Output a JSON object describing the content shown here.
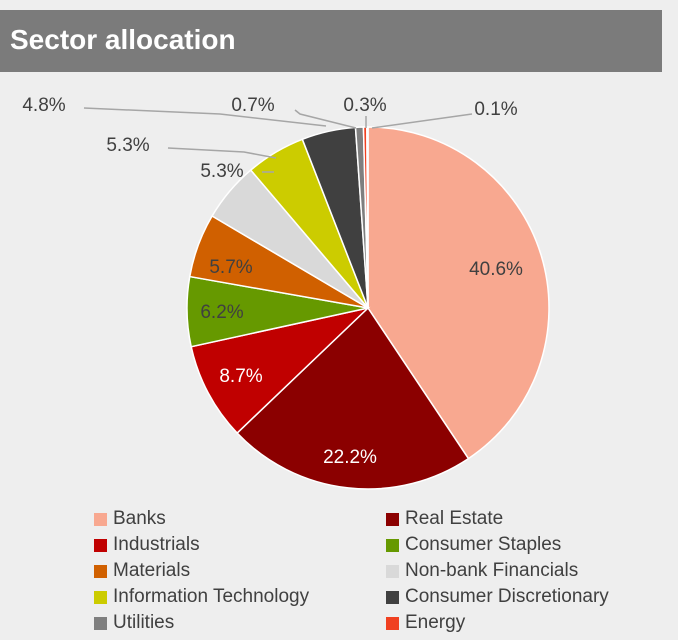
{
  "header": {
    "title": "Sector allocation"
  },
  "colors": {
    "background": "#eeeeee",
    "header_bg": "#7b7b7b",
    "leader_line": "#a6a6a6",
    "label_text": "#404040"
  },
  "chart_data": {
    "type": "pie",
    "title": "Sector allocation",
    "start": "12 o'clock, clockwise",
    "legend_position": "bottom",
    "slices": [
      {
        "name": "Banks",
        "value": 40.6,
        "label": "40.6%",
        "color": "#f8a890",
        "label_color": "#404040"
      },
      {
        "name": "Real Estate",
        "value": 22.2,
        "label": "22.2%",
        "color": "#8b0000",
        "label_color": "#ffffff"
      },
      {
        "name": "Industrials",
        "value": 8.7,
        "label": "8.7%",
        "color": "#c00000",
        "label_color": "#ffffff"
      },
      {
        "name": "Consumer Staples",
        "value": 6.2,
        "label": "6.2%",
        "color": "#669900",
        "label_color": "#404040"
      },
      {
        "name": "Materials",
        "value": 5.7,
        "label": "5.7%",
        "color": "#d06000",
        "label_color": "#404040"
      },
      {
        "name": "Non-bank Financials",
        "value": 5.3,
        "label": "5.3%",
        "color": "#d9d9d9",
        "label_color": "#404040"
      },
      {
        "name": "Information Technology",
        "value": 5.3,
        "label": "5.3%",
        "color": "#cccc00",
        "label_color": "#404040"
      },
      {
        "name": "Consumer Discretionary",
        "value": 4.8,
        "label": "4.8%",
        "color": "#404040",
        "label_color": "#404040"
      },
      {
        "name": "Utilities",
        "value": 0.7,
        "label": "0.7%",
        "color": "#7f7f7f",
        "label_color": "#404040"
      },
      {
        "name": "Energy",
        "value": 0.3,
        "label": "0.3%",
        "color": "#f04020",
        "label_color": "#404040"
      },
      {
        "name": "",
        "value": 0.1,
        "label": "0.1%",
        "color": "#f8a0a0",
        "label_color": "#404040"
      }
    ],
    "legend": [
      {
        "label": "Banks",
        "color": "#f8a890"
      },
      {
        "label": "Real Estate",
        "color": "#8b0000"
      },
      {
        "label": "Industrials",
        "color": "#c00000"
      },
      {
        "label": "Consumer Staples",
        "color": "#669900"
      },
      {
        "label": "Materials",
        "color": "#d06000"
      },
      {
        "label": "Non-bank Financials",
        "color": "#d9d9d9"
      },
      {
        "label": "Information Technology",
        "color": "#cccc00"
      },
      {
        "label": "Consumer Discretionary",
        "color": "#404040"
      },
      {
        "label": "Utilities",
        "color": "#7f7f7f"
      },
      {
        "label": "Energy",
        "color": "#f04020"
      }
    ]
  }
}
